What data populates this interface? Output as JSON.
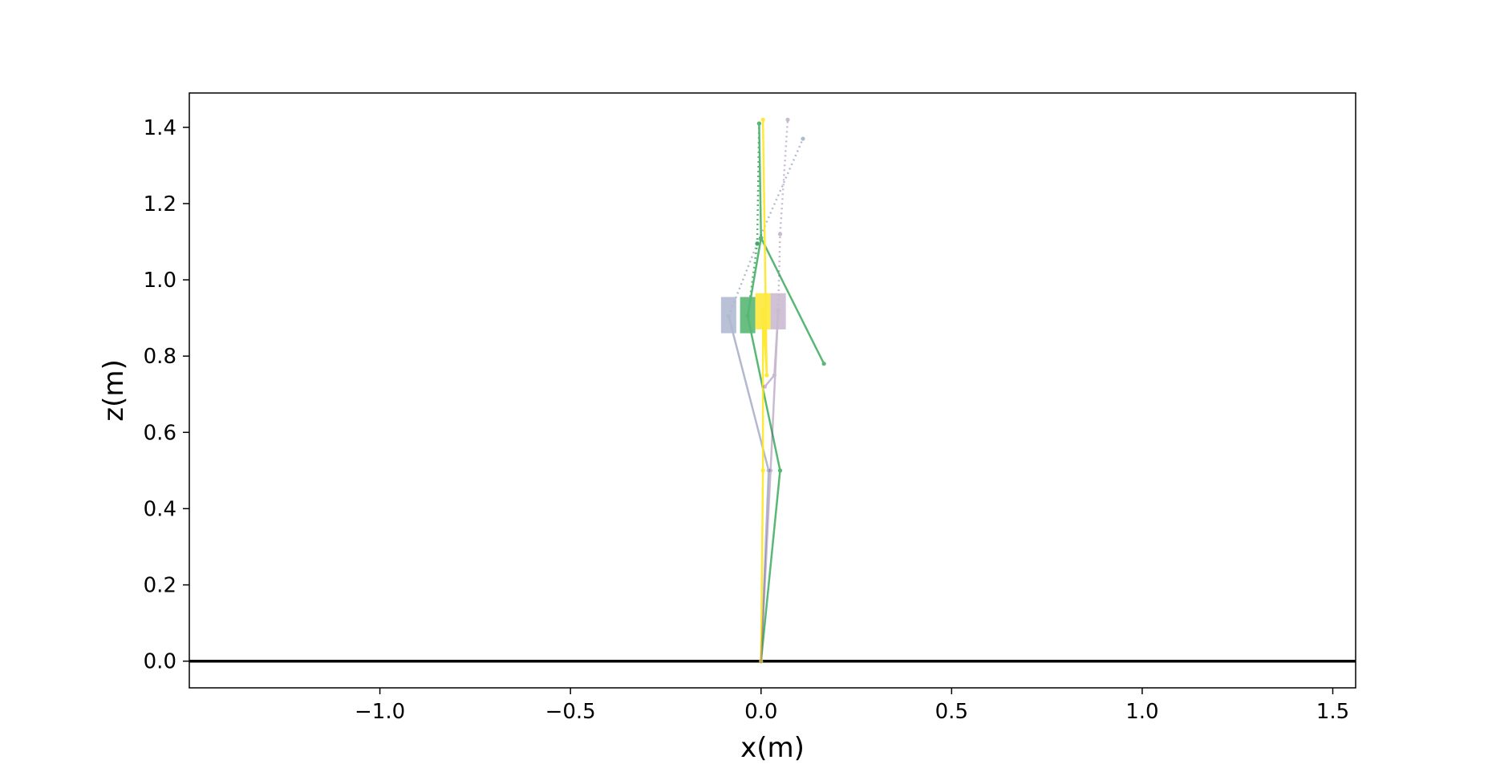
{
  "chart_data": {
    "type": "line",
    "title": "",
    "xlabel": "x(m)",
    "ylabel": "z(m)",
    "xlim": [
      -1.5,
      1.56
    ],
    "ylim": [
      -0.07,
      1.49
    ],
    "xticks": [
      -1.0,
      -0.5,
      0.0,
      0.5,
      1.0,
      1.5
    ],
    "xtick_labels": [
      "−1.0",
      "−0.5",
      "0.0",
      "0.5",
      "1.0",
      "1.5"
    ],
    "yticks": [
      0.0,
      0.2,
      0.4,
      0.6,
      0.8,
      1.0,
      1.2,
      1.4
    ],
    "ytick_labels": [
      "0.0",
      "0.2",
      "0.4",
      "0.6",
      "0.8",
      "1.0",
      "1.2",
      "1.4"
    ],
    "grid": false,
    "legend": "none",
    "ground_line": {
      "y": 0.0,
      "color": "#000000"
    },
    "series": [
      {
        "color": "#3b528b",
        "opacity": 0.4,
        "box": {
          "x": [
            -0.105,
            -0.065
          ],
          "z": [
            0.86,
            0.955
          ]
        },
        "solid": [
          [
            0.0,
            0.0
          ],
          [
            0.02,
            0.5
          ],
          [
            -0.085,
            0.905
          ]
        ],
        "dotted": [
          [
            -0.085,
            0.905
          ],
          [
            -0.01,
            1.095
          ],
          [
            0.11,
            1.37
          ]
        ]
      },
      {
        "color": "#21a047",
        "opacity": 0.75,
        "box": {
          "x": [
            -0.055,
            -0.015
          ],
          "z": [
            0.86,
            0.955
          ]
        },
        "solid": [
          [
            0.0,
            0.0
          ],
          [
            0.05,
            0.5
          ],
          [
            -0.035,
            0.905
          ],
          [
            0.0,
            1.11
          ],
          [
            0.165,
            0.78
          ],
          [
            0.0,
            1.11
          ],
          [
            -0.005,
            1.41
          ]
        ],
        "dotted": [
          [
            -0.035,
            0.905
          ],
          [
            -0.01,
            1.095
          ],
          [
            -0.005,
            1.41
          ]
        ]
      },
      {
        "color": "#fde725",
        "opacity": 0.9,
        "box": {
          "x": [
            -0.015,
            0.025
          ],
          "z": [
            0.87,
            0.965
          ]
        },
        "solid": [
          [
            0.0,
            0.0
          ],
          [
            0.005,
            0.5
          ],
          [
            0.005,
            0.92
          ],
          [
            0.015,
            0.75
          ],
          [
            0.005,
            1.42
          ]
        ],
        "dotted": []
      },
      {
        "color": "#6b3d7d",
        "opacity": 0.35,
        "box": {
          "x": [
            0.025,
            0.065
          ],
          "z": [
            0.87,
            0.965
          ]
        },
        "solid": [
          [
            0.0,
            0.0
          ],
          [
            0.025,
            0.5
          ],
          [
            0.045,
            0.92
          ],
          [
            0.035,
            0.75
          ],
          [
            0.01,
            0.72
          ]
        ],
        "dotted": [
          [
            0.045,
            0.92
          ],
          [
            0.05,
            1.12
          ],
          [
            0.07,
            1.42
          ]
        ]
      }
    ]
  }
}
